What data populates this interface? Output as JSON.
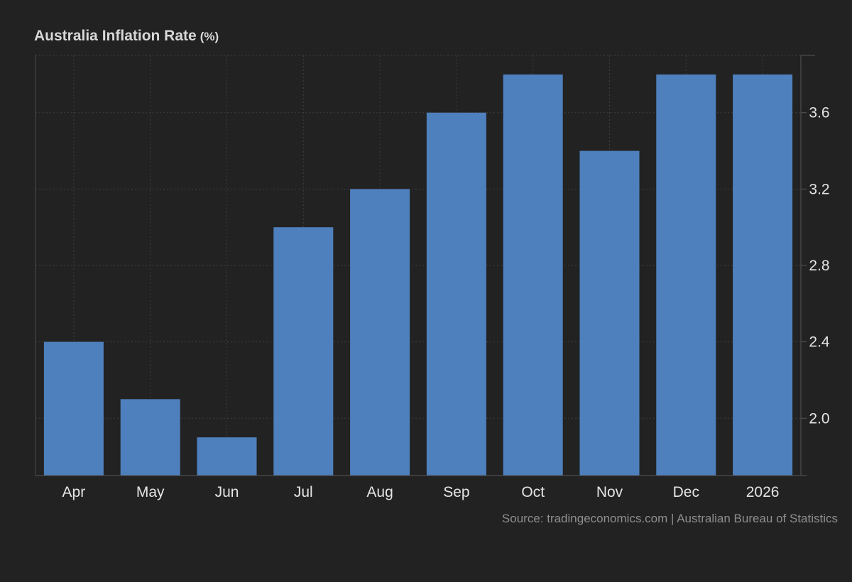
{
  "chart_data": {
    "type": "bar",
    "title": "Australia Inflation Rate",
    "title_unit": "(%)",
    "categories": [
      "Apr",
      "May",
      "Jun",
      "Jul",
      "Aug",
      "Sep",
      "Oct",
      "Nov",
      "Dec",
      "2026"
    ],
    "values": [
      2.4,
      2.1,
      1.9,
      3.0,
      3.2,
      3.6,
      3.8,
      3.4,
      3.8,
      3.8
    ],
    "xlabel": "",
    "ylabel": "",
    "ylim": [
      1.7,
      3.9
    ],
    "yticks": [
      "2.0",
      "2.4",
      "2.8",
      "3.2",
      "3.6"
    ],
    "y_axis_side": "right",
    "grid": true,
    "legend": "none",
    "bar_color": "#4e80bd",
    "source": "Source: tradingeconomics.com | Australian Bureau of Statistics"
  }
}
